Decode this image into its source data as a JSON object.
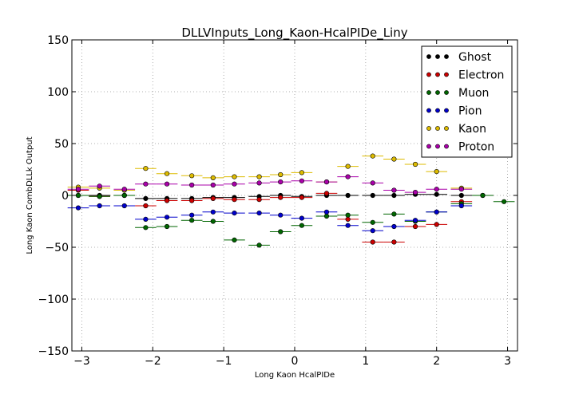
{
  "chart_data": {
    "type": "scatter",
    "title": "DLLVInputs_Long_Kaon-HcalPIDe_Liny",
    "xlabel": "Long Kaon HcalPIDe",
    "ylabel": "Long Kaon CombDLLk Output",
    "xlim": [
      -3.14,
      3.14
    ],
    "ylim": [
      -150,
      150
    ],
    "xticks": [
      -3,
      -2,
      -1,
      0,
      1,
      2,
      3
    ],
    "yticks": [
      -150,
      -100,
      -50,
      0,
      50,
      100,
      150
    ],
    "xtick_labels": [
      "−3",
      "−2",
      "−1",
      "0",
      "1",
      "2",
      "3"
    ],
    "ytick_labels": [
      "−150",
      "−100",
      "−50",
      "0",
      "50",
      "100",
      "150"
    ],
    "grid": true,
    "legend_position": "top-right",
    "bin_half_width": 0.15,
    "series": [
      {
        "name": "Ghost",
        "color": "#000000",
        "x": [
          -3.05,
          -2.75,
          -2.4,
          -2.1,
          -1.8,
          -1.45,
          -1.15,
          -0.85,
          -0.5,
          -0.2,
          0.1,
          0.45,
          0.75,
          1.1,
          1.4,
          1.7,
          2.0,
          2.35,
          2.65
        ],
        "y": [
          0,
          0,
          0,
          -3,
          -3,
          -3,
          -2,
          -2,
          -1,
          0,
          -1,
          0,
          0,
          0,
          0,
          1,
          1,
          0,
          0
        ]
      },
      {
        "name": "Electron",
        "color": "#cc0000",
        "x": [
          -3.05,
          -2.75,
          -2.4,
          -2.1,
          -1.8,
          -1.45,
          -1.15,
          -0.85,
          -0.5,
          -0.2,
          0.1,
          0.45,
          0.75,
          1.1,
          1.4,
          1.7,
          2.0,
          2.35
        ],
        "y": [
          5,
          -1,
          0,
          -10,
          -5,
          -5,
          -3,
          -4,
          -4,
          -2,
          -2,
          2,
          -23,
          -45,
          -45,
          -30,
          -28,
          -6
        ]
      },
      {
        "name": "Muon",
        "color": "#006600",
        "x": [
          -3.05,
          -2.75,
          -2.4,
          -2.1,
          -1.8,
          -1.45,
          -1.15,
          -0.85,
          -0.5,
          -0.2,
          0.1,
          0.45,
          0.75,
          1.1,
          1.4,
          1.7,
          2.0,
          2.35,
          2.65,
          2.95
        ],
        "y": [
          0,
          -1,
          0,
          -31,
          -30,
          -24,
          -25,
          -43,
          -48,
          -35,
          -29,
          -20,
          -19,
          -26,
          -18,
          -25,
          -16,
          -8,
          0,
          -6
        ]
      },
      {
        "name": "Pion",
        "color": "#0000cc",
        "x": [
          -3.05,
          -2.75,
          -2.4,
          -2.1,
          -1.8,
          -1.45,
          -1.15,
          -0.85,
          -0.5,
          -0.2,
          0.1,
          0.45,
          0.75,
          1.1,
          1.4,
          1.7,
          2.0,
          2.35
        ],
        "y": [
          -12,
          -10,
          -10,
          -23,
          -21,
          -19,
          -16,
          -17,
          -17,
          -19,
          -22,
          -16,
          -29,
          -34,
          -30,
          -24,
          -16,
          -10
        ]
      },
      {
        "name": "Kaon",
        "color": "#ddbb00",
        "x": [
          -3.05,
          -2.75,
          -2.4,
          -2.1,
          -1.8,
          -1.45,
          -1.15,
          -0.85,
          -0.5,
          -0.2,
          0.1,
          0.45,
          0.75,
          1.1,
          1.4,
          1.7,
          2.0,
          2.35
        ],
        "y": [
          8,
          7,
          5,
          26,
          21,
          19,
          17,
          18,
          18,
          20,
          22,
          13,
          28,
          38,
          35,
          30,
          23,
          7
        ]
      },
      {
        "name": "Proton",
        "color": "#aa00aa",
        "x": [
          -3.05,
          -2.75,
          -2.4,
          -2.1,
          -1.8,
          -1.45,
          -1.15,
          -0.85,
          -0.5,
          -0.2,
          0.1,
          0.45,
          0.75,
          1.1,
          1.4,
          1.7,
          2.0,
          2.35
        ],
        "y": [
          6,
          9,
          6,
          11,
          11,
          10,
          10,
          11,
          12,
          13,
          14,
          13,
          18,
          12,
          5,
          3,
          6,
          6
        ]
      }
    ]
  }
}
